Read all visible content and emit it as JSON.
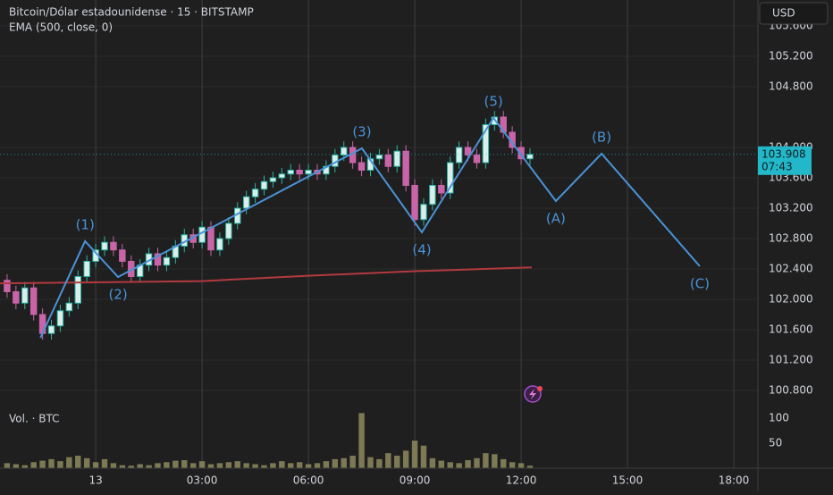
{
  "chart_data": {
    "type": "candlestick",
    "title": "Bitcoin/Dólar estadounidense · 15 · BITSTAMP",
    "currency": "USD",
    "xlim": [
      -2.7,
      18.68
    ],
    "xticks": [
      {
        "value": 0,
        "label": "13"
      },
      {
        "value": 3,
        "label": "03:00"
      },
      {
        "value": 6,
        "label": "06:00"
      },
      {
        "value": 9,
        "label": "09:00"
      },
      {
        "value": 12,
        "label": "12:00"
      },
      {
        "value": 15,
        "label": "15:00"
      },
      {
        "value": 18,
        "label": "18:00"
      }
    ],
    "ylim": [
      100588,
      105941
    ],
    "yticks": [
      {
        "value": 100800,
        "label": "100.800"
      },
      {
        "value": 101200,
        "label": "101.200"
      },
      {
        "value": 101600,
        "label": "101.600"
      },
      {
        "value": 102000,
        "label": "102.000"
      },
      {
        "value": 102400,
        "label": "102.400"
      },
      {
        "value": 102800,
        "label": "102.800"
      },
      {
        "value": 103200,
        "label": "103.200"
      },
      {
        "value": 103600,
        "label": "103.600"
      },
      {
        "value": 104000,
        "label": "104.000"
      },
      {
        "value": 104800,
        "label": "104.800"
      },
      {
        "value": 105200,
        "label": "105.200"
      },
      {
        "value": 105600,
        "label": "105.600"
      }
    ],
    "y2lim": [
      0,
      123
    ],
    "y2ticks": [
      50,
      100
    ],
    "grid": true,
    "last_price": {
      "value": 103908,
      "label": "103.908",
      "countdown": "07:43",
      "color": "#22b8c9"
    },
    "series": [
      {
        "type": "candlestick",
        "up_color": "#d9efec",
        "up_stroke": "#2bb3a3",
        "down_color": "#c964a8",
        "x": [
          -2.5,
          -2.25,
          -2,
          -1.75,
          -1.5,
          -1.25,
          -1,
          -0.75,
          -0.5,
          -0.25,
          0,
          0.25,
          0.5,
          0.75,
          1,
          1.25,
          1.5,
          1.75,
          2,
          2.25,
          2.5,
          2.75,
          3,
          3.25,
          3.5,
          3.75,
          4,
          4.25,
          4.5,
          4.75,
          5,
          5.25,
          5.5,
          5.75,
          6,
          6.25,
          6.5,
          6.75,
          7,
          7.25,
          7.5,
          7.75,
          8,
          8.25,
          8.5,
          8.75,
          9,
          9.25,
          9.5,
          9.75,
          10,
          10.25,
          10.5,
          10.75,
          11,
          11.25,
          11.5,
          11.75,
          12,
          12.25
        ],
        "open": [
          102250,
          102100,
          101950,
          102150,
          101800,
          101550,
          101650,
          101850,
          101950,
          102300,
          102500,
          102650,
          102750,
          102650,
          102500,
          102300,
          102450,
          102600,
          102450,
          102550,
          102700,
          102850,
          102750,
          102950,
          102650,
          102800,
          103000,
          103200,
          103350,
          103450,
          103550,
          103600,
          103650,
          103700,
          103650,
          103700,
          103650,
          103750,
          103900,
          104000,
          103800,
          103700,
          103850,
          103900,
          103750,
          103950,
          103500,
          103050,
          103250,
          103500,
          103400,
          103800,
          104000,
          103900,
          103800,
          104300,
          104400,
          104200,
          104000,
          103850
        ],
        "high": [
          102330,
          102180,
          102230,
          102230,
          101880,
          101730,
          101930,
          102030,
          102380,
          102580,
          102730,
          102830,
          102830,
          102730,
          102580,
          102530,
          102680,
          102680,
          102630,
          102780,
          102930,
          102930,
          103030,
          103030,
          102880,
          103080,
          103280,
          103430,
          103530,
          103630,
          103680,
          103730,
          103780,
          103780,
          103780,
          103780,
          103830,
          103980,
          104080,
          104080,
          103880,
          103930,
          103980,
          103980,
          104030,
          104030,
          103580,
          103330,
          103580,
          103580,
          103880,
          104080,
          104080,
          103980,
          104380,
          104480,
          104480,
          104280,
          104080,
          103988
        ],
        "low": [
          102020,
          101870,
          101870,
          101720,
          101470,
          101470,
          101570,
          101770,
          101870,
          102220,
          102420,
          102570,
          102570,
          102420,
          102220,
          102220,
          102370,
          102370,
          102370,
          102470,
          102620,
          102670,
          102670,
          102570,
          102570,
          102720,
          102920,
          103120,
          103270,
          103370,
          103470,
          103520,
          103570,
          103570,
          103570,
          103570,
          103570,
          103670,
          103820,
          103720,
          103620,
          103620,
          103770,
          103670,
          103670,
          103420,
          102970,
          102970,
          103170,
          103320,
          103320,
          103720,
          103820,
          103720,
          103720,
          104220,
          104120,
          103920,
          103770,
          103770
        ],
        "close": [
          102100,
          101950,
          102150,
          101800,
          101550,
          101650,
          101850,
          101950,
          102300,
          102500,
          102650,
          102750,
          102650,
          102500,
          102300,
          102450,
          102600,
          102450,
          102550,
          102700,
          102850,
          102750,
          102950,
          102650,
          102800,
          103000,
          103200,
          103350,
          103450,
          103550,
          103600,
          103650,
          103700,
          103650,
          103700,
          103650,
          103750,
          103900,
          104000,
          103800,
          103700,
          103850,
          103900,
          103750,
          103950,
          103500,
          103050,
          103250,
          103500,
          103400,
          103800,
          104000,
          103900,
          103800,
          104300,
          104400,
          104200,
          104000,
          103850,
          103908
        ]
      },
      {
        "name": "Vol. · BTC",
        "axis": "y2",
        "color": "#8d8a5e",
        "values": [
          10,
          8,
          6,
          12,
          15,
          18,
          14,
          22,
          25,
          20,
          12,
          18,
          10,
          6,
          5,
          8,
          6,
          10,
          12,
          15,
          16,
          10,
          14,
          8,
          10,
          12,
          14,
          10,
          8,
          6,
          10,
          14,
          10,
          12,
          8,
          10,
          14,
          18,
          20,
          25,
          110,
          22,
          18,
          30,
          25,
          35,
          55,
          45,
          20,
          15,
          12,
          10,
          16,
          20,
          30,
          28,
          18,
          12,
          10,
          5
        ]
      },
      {
        "name": "EMA (500, close, 0)",
        "color": "#b23a3f",
        "x": [
          -2.7,
          3,
          6,
          9,
          12.3
        ],
        "values": [
          102210,
          102240,
          102310,
          102370,
          102420
        ]
      },
      {
        "color": "#4a93d6",
        "x": [
          -1.56,
          -0.3,
          0.63,
          7.51,
          9.2,
          11.22,
          12.98,
          14.27,
          17.04
        ],
        "values": [
          101494,
          102765,
          102294,
          103988,
          102882,
          104388,
          103294,
          103918,
          102435
        ],
        "labels": [
          null,
          "(1)",
          "(2)",
          "(3)",
          "(4)",
          "(5)",
          "(A)",
          "(B)",
          "(C)"
        ]
      }
    ]
  }
}
